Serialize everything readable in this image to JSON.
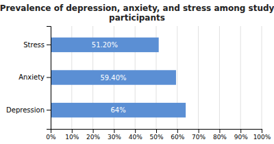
{
  "chart_data": {
    "type": "bar",
    "orientation": "horizontal",
    "title": "Prevalence of depression, anxiety, and stress among study\nparticipants",
    "categories": [
      "Depression",
      "Anxiety",
      "Stress"
    ],
    "values": [
      64.0,
      59.4,
      51.2
    ],
    "value_labels": [
      "64%",
      "59.40%",
      "51.20%"
    ],
    "data_labels": true,
    "color": "#5b8fd4",
    "xlim": [
      0,
      100
    ],
    "xticks": [
      {
        "value": 0,
        "label": "0%"
      },
      {
        "value": 10,
        "label": "10%"
      },
      {
        "value": 20,
        "label": "20%"
      },
      {
        "value": 30,
        "label": "30%"
      },
      {
        "value": 40,
        "label": "40%"
      },
      {
        "value": 50,
        "label": "50%"
      },
      {
        "value": 60,
        "label": "60%"
      },
      {
        "value": 70,
        "label": "70%"
      },
      {
        "value": 80,
        "label": "80%"
      },
      {
        "value": 90,
        "label": "90%"
      },
      {
        "value": 100,
        "label": "100%"
      }
    ],
    "grid": true
  }
}
